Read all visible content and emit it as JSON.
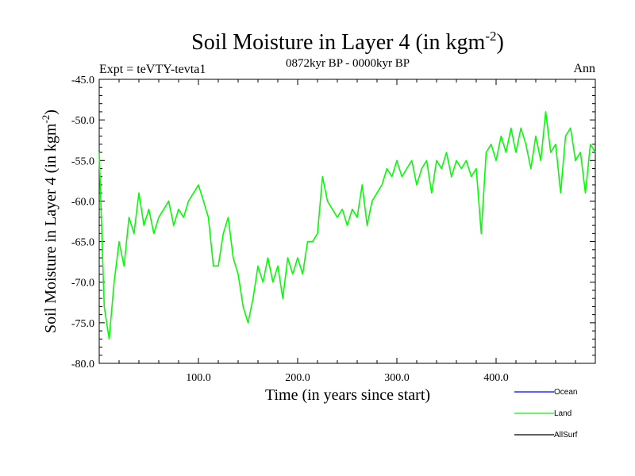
{
  "chart_data": {
    "type": "line",
    "title": "Soil Moisture in Layer 4 (in kgm",
    "title_sup": "-2",
    "title_close": ")",
    "subtitle": "0872kyr BP - 0000kyr BP",
    "left_label": "Expt = teVTY-tevta1",
    "right_label": "Ann",
    "xlabel": "Time (in years since start)",
    "ylabel": "Soil Moisture in Layer 4 (in kgm",
    "ylabel_sup": "-2",
    "ylabel_close": ")",
    "xlim": [
      0,
      500
    ],
    "ylim": [
      -80,
      -45
    ],
    "xticks": [
      100,
      200,
      300,
      400
    ],
    "xtick_labels": [
      "100.0",
      "200.0",
      "300.0",
      "400.0"
    ],
    "yticks": [
      -80,
      -75,
      -70,
      -65,
      -60,
      -55,
      -50,
      -45
    ],
    "ytick_labels": [
      "-80.0",
      "-75.0",
      "-70.0",
      "-65.0",
      "-60.0",
      "-55.0",
      "-50.0",
      "-45.0"
    ],
    "legend": [
      {
        "name": "Ocean",
        "color": "#0000ff"
      },
      {
        "name": "Land",
        "color": "#00ff00"
      },
      {
        "name": "AllSurf",
        "color": "#000000"
      }
    ],
    "series": [
      {
        "name": "Land",
        "color": "#00ff00",
        "x": [
          0,
          5,
          10,
          15,
          20,
          25,
          30,
          35,
          40,
          45,
          50,
          55,
          60,
          65,
          70,
          75,
          80,
          85,
          90,
          95,
          100,
          105,
          110,
          115,
          120,
          125,
          130,
          135,
          140,
          145,
          150,
          155,
          160,
          165,
          170,
          175,
          180,
          185,
          190,
          195,
          200,
          205,
          210,
          215,
          220,
          225,
          230,
          235,
          240,
          245,
          250,
          255,
          260,
          265,
          270,
          275,
          280,
          285,
          290,
          295,
          300,
          305,
          310,
          315,
          320,
          325,
          330,
          335,
          340,
          345,
          350,
          355,
          360,
          365,
          370,
          375,
          380,
          385,
          390,
          395,
          400,
          405,
          410,
          415,
          420,
          425,
          430,
          435,
          440,
          445,
          450,
          455,
          460,
          465,
          470,
          475,
          480,
          485,
          490,
          495,
          500
        ],
        "values": [
          -54,
          -73,
          -77,
          -70,
          -65,
          -68,
          -62,
          -64,
          -59,
          -63,
          -61,
          -64,
          -62,
          -61,
          -60,
          -63,
          -61,
          -62,
          -60,
          -59,
          -58,
          -60,
          -62,
          -68,
          -68,
          -64,
          -62,
          -67,
          -69,
          -73,
          -75,
          -72,
          -68,
          -70,
          -67,
          -70,
          -68,
          -72,
          -67,
          -69,
          -67,
          -69,
          -65,
          -65,
          -64,
          -57,
          -60,
          -61,
          -62,
          -61,
          -63,
          -61,
          -62,
          -58,
          -63,
          -60,
          -59,
          -58,
          -56,
          -57,
          -55,
          -57,
          -56,
          -55,
          -58,
          -56,
          -55,
          -59,
          -55,
          -56,
          -54,
          -57,
          -55,
          -56,
          -55,
          -57,
          -56,
          -64,
          -54,
          -53,
          -55,
          -52,
          -54,
          -51,
          -54,
          -51,
          -53,
          -56,
          -52,
          -55,
          -49,
          -54,
          -53,
          -59,
          -52,
          -51,
          -55,
          -54,
          -59,
          -53,
          -54
        ]
      },
      {
        "name": "Ocean",
        "color": "#0000ff",
        "x": [],
        "values": []
      },
      {
        "name": "AllSurf",
        "color": "#000000",
        "x": [],
        "values": []
      }
    ]
  }
}
